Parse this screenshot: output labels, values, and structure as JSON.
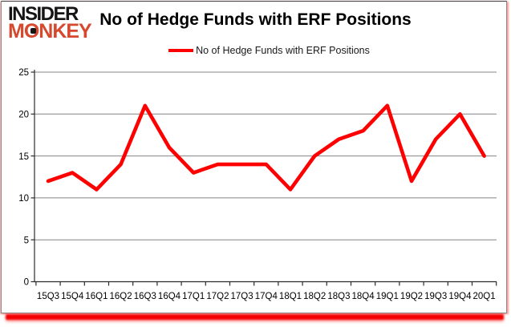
{
  "logo": {
    "line1": "INSIDER",
    "line2": "MONKEY",
    "line1_color": "#151515",
    "line2_color": "#d6492f"
  },
  "header": {
    "title": "No of Hedge Funds with ERF Positions"
  },
  "legend": {
    "label": "No of Hedge Funds with ERF Positions",
    "line_color": "#ff0000"
  },
  "chart_data": {
    "type": "line",
    "title": "No of Hedge Funds with ERF Positions",
    "categories": [
      "15Q3",
      "15Q4",
      "16Q1",
      "16Q2",
      "16Q3",
      "16Q4",
      "17Q1",
      "17Q2",
      "17Q3",
      "17Q4",
      "18Q1",
      "18Q2",
      "18Q3",
      "18Q4",
      "19Q1",
      "19Q2",
      "19Q3",
      "19Q4",
      "20Q1"
    ],
    "series": [
      {
        "name": "No of Hedge Funds with ERF Positions",
        "color": "#ff0000",
        "values": [
          12,
          13,
          11,
          14,
          21,
          16,
          13,
          14,
          14,
          14,
          11,
          15,
          17,
          18,
          21,
          12,
          17,
          20,
          15
        ]
      }
    ],
    "xlabel": "",
    "ylabel": "",
    "ylim": [
      0,
      25
    ],
    "yticks": [
      0,
      5,
      10,
      15,
      20,
      25
    ],
    "grid": true,
    "legend_position": "top",
    "plot_background": "#ffffff",
    "gridline_color": "#848484",
    "axis_color": "#2b2b2b",
    "label_color": "#000000"
  },
  "frame": {
    "bottom_bar_color": "#f40000",
    "border_color": "#8a8a8a"
  }
}
